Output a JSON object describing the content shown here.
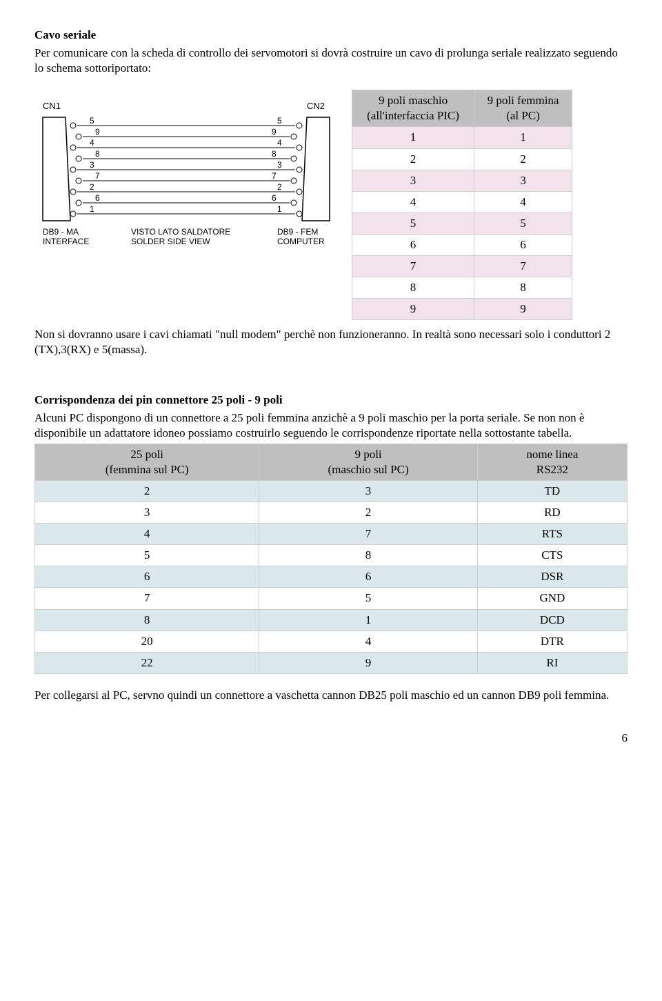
{
  "h1": "Cavo seriale",
  "p1": "Per comunicare con la scheda di controllo dei servomotori si dovrà costruire un cavo di prolunga seriale realizzato seguendo lo schema sottoriportato:",
  "diagram": {
    "cn1": "CN1",
    "cn2": "CN2",
    "left_label1": "DB9 - MA",
    "left_label2": "INTERFACE",
    "mid_label1": "VISTO LATO SALDATORE",
    "mid_label2": "SOLDER SIDE VIEW",
    "right_label1": "DB9 - FEM",
    "right_label2": "COMPUTER",
    "pins_top": [
      "5",
      "9",
      "4",
      "8",
      "3",
      "7",
      "2",
      "6",
      "1"
    ]
  },
  "table1": {
    "h1a": "9 poli maschio",
    "h1b": "(all'interfaccia PIC)",
    "h2a": "9 poli femmina",
    "h2b": "(al PC)",
    "rows": [
      [
        "1",
        "1"
      ],
      [
        "2",
        "2"
      ],
      [
        "3",
        "3"
      ],
      [
        "4",
        "4"
      ],
      [
        "5",
        "5"
      ],
      [
        "6",
        "6"
      ],
      [
        "7",
        "7"
      ],
      [
        "8",
        "8"
      ],
      [
        "9",
        "9"
      ]
    ]
  },
  "p2": "Non si dovranno usare i cavi chiamati \"null modem\" perchè non funzioneranno. In realtà sono necessari solo i conduttori 2 (TX),3(RX) e 5(massa).",
  "h2": "Corrispondenza dei pin connettore 25 poli - 9 poli",
  "p3": "Alcuni PC dispongono di un connettore a 25 poli femmina anzichè a 9 poli maschio per la porta seriale. Se non non è disponibile un adattatore idoneo possiamo costruirlo seguendo le corrispondenze riportate nella sottostante tabella.",
  "table2": {
    "h1a": "25 poli",
    "h1b": "(femmina sul PC)",
    "h2a": "9 poli",
    "h2b": "(maschio sul PC)",
    "h3a": "nome linea",
    "h3b": "RS232",
    "rows": [
      [
        "2",
        "3",
        "TD"
      ],
      [
        "3",
        "2",
        "RD"
      ],
      [
        "4",
        "7",
        "RTS"
      ],
      [
        "5",
        "8",
        "CTS"
      ],
      [
        "6",
        "6",
        "DSR"
      ],
      [
        "7",
        "5",
        "GND"
      ],
      [
        "8",
        "1",
        "DCD"
      ],
      [
        "20",
        "4",
        "DTR"
      ],
      [
        "22",
        "9",
        "RI"
      ]
    ]
  },
  "p4": "Per collegarsi al PC, servno quindi un connettore a vaschetta cannon DB25 poli maschio ed un cannon DB9 poli femmina.",
  "pagenum": "6"
}
